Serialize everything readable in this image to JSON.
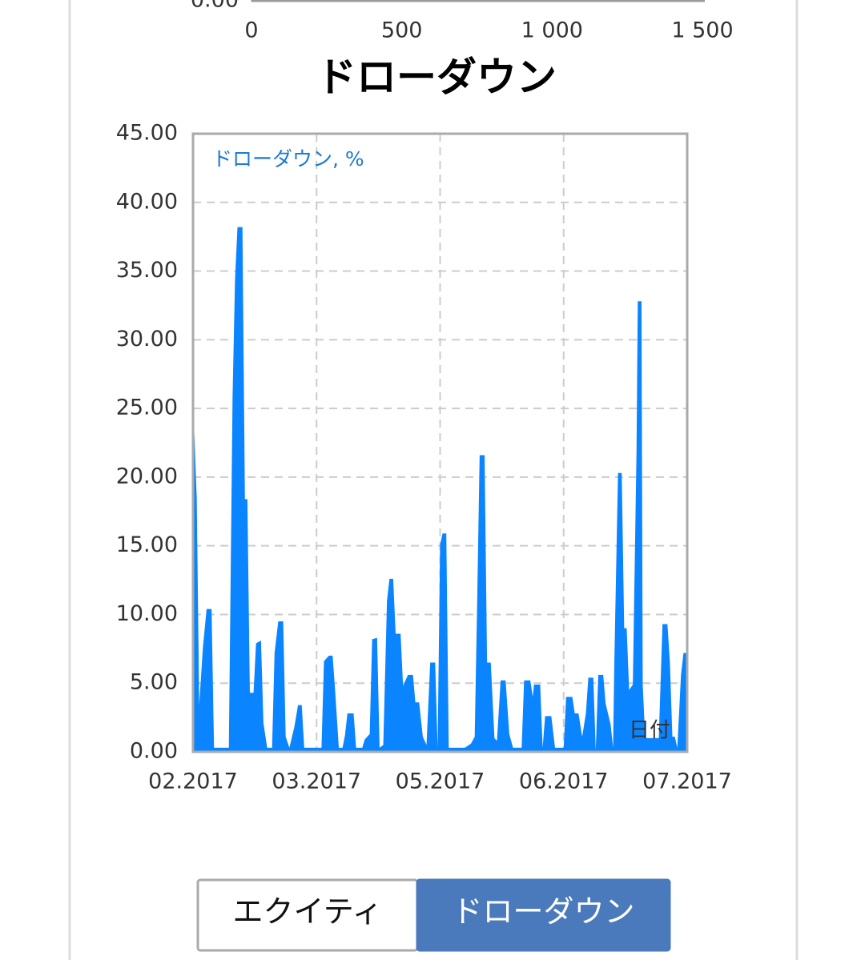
{
  "chart_data": [
    {
      "type": "axis",
      "xlim": [
        0,
        1500
      ],
      "xticks": [
        0,
        500,
        {
          "value": 1000,
          "label": "1 000"
        },
        {
          "value": 1500,
          "label": "1 500"
        }
      ],
      "yticks": [
        {
          "value": 0,
          "label": "0.00"
        }
      ]
    },
    {
      "type": "area",
      "title": "ドローダウン",
      "x_label": "日付",
      "xlim": [
        0,
        4
      ],
      "xticks": [
        {
          "value": 0,
          "label": "02.2017"
        },
        {
          "value": 1,
          "label": "03.2017"
        },
        {
          "value": 2,
          "label": "05.2017"
        },
        {
          "value": 3,
          "label": "06.2017"
        },
        {
          "value": 4,
          "label": "07.2017"
        }
      ],
      "ylim": [
        0,
        45
      ],
      "yticks": [
        {
          "value": 0,
          "label": "0.00"
        },
        {
          "value": 5,
          "label": "5.00"
        },
        {
          "value": 10,
          "label": "10.00"
        },
        {
          "value": 15,
          "label": "15.00"
        },
        {
          "value": 20,
          "label": "20.00"
        },
        {
          "value": 25,
          "label": "25.00"
        },
        {
          "value": 30,
          "label": "30.00"
        },
        {
          "value": 35,
          "label": "35.00"
        },
        {
          "value": 40,
          "label": "40.00"
        },
        {
          "value": 45,
          "label": "45.00"
        }
      ],
      "grid": true,
      "x": [
        0,
        0.03,
        0.05,
        0.08,
        0.11,
        0.15,
        0.17,
        0.29,
        0.32,
        0.34,
        0.36,
        0.4,
        0.42,
        0.44,
        0.46,
        0.49,
        0.51,
        0.55,
        0.57,
        0.6,
        0.64,
        0.66,
        0.69,
        0.73,
        0.75,
        0.78,
        0.82,
        0.85,
        0.88,
        0.9,
        1.04,
        1.06,
        1.1,
        1.13,
        1.15,
        1.18,
        1.21,
        1.23,
        1.25,
        1.3,
        1.32,
        1.37,
        1.39,
        1.43,
        1.45,
        1.49,
        1.51,
        1.54,
        1.57,
        1.59,
        1.62,
        1.64,
        1.68,
        1.7,
        1.74,
        1.78,
        1.8,
        1.83,
        1.86,
        1.89,
        1.92,
        1.96,
        1.98,
        2.0,
        2.02,
        2.05,
        2.07,
        2.2,
        2.25,
        2.28,
        2.3,
        2.32,
        2.36,
        2.38,
        2.41,
        2.44,
        2.46,
        2.49,
        2.53,
        2.56,
        2.59,
        2.66,
        2.68,
        2.73,
        2.75,
        2.76,
        2.81,
        2.83,
        2.85,
        2.9,
        2.93,
        3.0,
        3.02,
        3.07,
        3.09,
        3.12,
        3.15,
        3.18,
        3.2,
        3.24,
        3.26,
        3.28,
        3.32,
        3.34,
        3.38,
        3.4,
        3.41,
        3.44,
        3.47,
        3.49,
        3.51,
        3.53,
        3.56,
        3.59,
        3.6,
        3.63,
        3.64,
        3.66,
        3.77,
        3.8,
        3.84,
        3.86,
        3.88,
        3.9,
        3.92,
        3.95,
        3.97,
        4.0
      ],
      "series": [
        {
          "name": "ドローダウン, %",
          "color": "#0a84ff",
          "values": [
            25.7,
            18.5,
            3.4,
            7.6,
            10.4,
            10.4,
            0.3,
            0.3,
            25.8,
            34.4,
            38.2,
            38.2,
            18.4,
            18.4,
            4.3,
            4.3,
            7.9,
            8.1,
            2.1,
            0.3,
            0.3,
            7.2,
            9.5,
            9.5,
            1.1,
            0.3,
            1.8,
            3.4,
            3.4,
            0.3,
            0.3,
            6.6,
            7.0,
            7.0,
            4.5,
            0.3,
            0.3,
            1.2,
            2.8,
            2.8,
            0.3,
            0.3,
            0.9,
            1.3,
            8.2,
            8.3,
            0.3,
            0.5,
            11.0,
            12.6,
            12.6,
            8.6,
            8.6,
            4.8,
            5.6,
            5.6,
            3.6,
            3.6,
            1.1,
            0.5,
            6.5,
            6.5,
            0.3,
            15.1,
            15.9,
            15.9,
            0.3,
            0.3,
            0.6,
            1.1,
            10.9,
            21.6,
            21.6,
            6.5,
            6.5,
            1.0,
            0.8,
            5.2,
            5.2,
            1.3,
            0.3,
            0.3,
            5.2,
            5.2,
            4.0,
            4.9,
            4.9,
            0.3,
            2.6,
            2.6,
            0.3,
            0.3,
            4.0,
            4.0,
            2.8,
            2.8,
            1.1,
            2.8,
            5.4,
            5.4,
            0.1,
            5.6,
            5.6,
            3.5,
            2.0,
            0.3,
            6.4,
            20.3,
            20.3,
            9.0,
            9.0,
            4.5,
            4.9,
            22.0,
            32.8,
            32.8,
            4.9,
            1.0,
            1.0,
            9.3,
            9.3,
            6.5,
            1.1,
            1.1,
            0.3,
            5.6,
            7.2,
            7.2
          ]
        }
      ]
    }
  ],
  "buttons": [
    {
      "label": "エクイティ",
      "active": false
    },
    {
      "label": "ドローダウン",
      "active": true
    }
  ]
}
